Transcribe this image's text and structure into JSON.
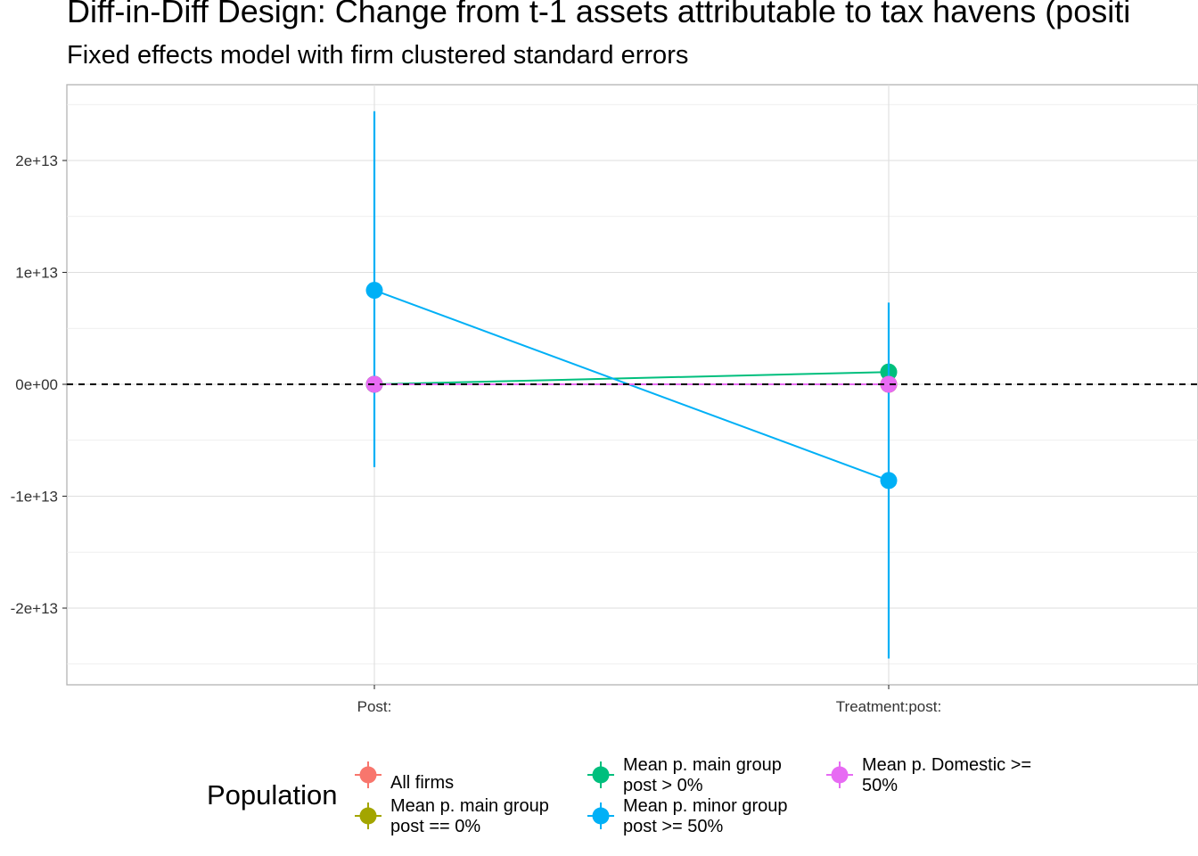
{
  "title": "Diff-in-Diff Design: Change from t-1 assets attributable to tax havens (positi",
  "subtitle": "Fixed effects model with firm clustered standard errors",
  "chart_data": {
    "type": "line",
    "title": "Diff-in-Diff Design: Change from t-1 assets attributable to tax havens (positi",
    "subtitle": "Fixed effects model with firm clustered standard errors",
    "xlabel": "",
    "ylabel": "",
    "categories": [
      "Post:",
      "Treatment:post:"
    ],
    "ylim": [
      -26500000000000.0,
      27000000000000.0
    ],
    "y_ticks": [
      -20000000000000.0,
      -10000000000000.0,
      0,
      10000000000000.0,
      20000000000000.0
    ],
    "y_tick_labels": [
      "-2e+13",
      "-1e+13",
      "0e+00",
      "1e+13",
      "2e+13"
    ],
    "reference_line": 0,
    "grid": true,
    "legend_title": "Population",
    "legend_position": "bottom",
    "series": [
      {
        "name": "All firms",
        "color": "#F8766D",
        "values": [
          0,
          0
        ],
        "lower": [
          0,
          0
        ],
        "upper": [
          0,
          0
        ]
      },
      {
        "name": "Mean p. main group post == 0%",
        "color": "#A3A500",
        "values": [
          0,
          0
        ],
        "lower": [
          0,
          0
        ],
        "upper": [
          0,
          0
        ]
      },
      {
        "name": "Mean p. main group post > 0%",
        "color": "#00BF7D",
        "values": [
          0.0,
          1100000000000.0
        ],
        "lower": [
          0.0,
          1000000000000.0
        ],
        "upper": [
          0.0,
          1200000000000.0
        ]
      },
      {
        "name": "Mean p. minor group post >= 50%",
        "color": "#00B0F6",
        "values": [
          8400000000000.0,
          -8600000000000.0
        ],
        "lower": [
          -7400000000000.0,
          -24500000000000.0
        ],
        "upper": [
          24400000000000.0,
          7300000000000.0
        ]
      },
      {
        "name": "Mean p. Domestic >= 50%",
        "color": "#E76BF3",
        "values": [
          0,
          0
        ],
        "lower": [
          0,
          0
        ],
        "upper": [
          0,
          0
        ]
      }
    ]
  },
  "legend": {
    "title": "Population",
    "items": [
      {
        "label_line1": "All firms",
        "label_line2": "",
        "color": "#F8766D"
      },
      {
        "label_line1": "Mean p. main group",
        "label_line2": "post == 0%",
        "color": "#A3A500"
      },
      {
        "label_line1": "Mean p. main group",
        "label_line2": "post > 0%",
        "color": "#00BF7D"
      },
      {
        "label_line1": "Mean p. minor group",
        "label_line2": "post >= 50%",
        "color": "#00B0F6"
      },
      {
        "label_line1": "Mean p. Domestic >=",
        "label_line2": "50%",
        "color": "#E76BF3"
      }
    ]
  }
}
